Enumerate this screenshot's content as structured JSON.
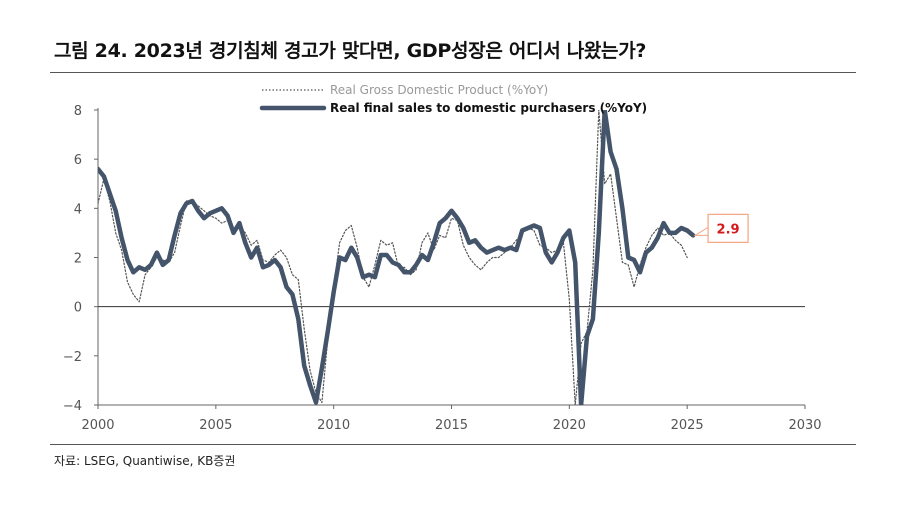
{
  "header": {
    "title": "그림 24. 2023년 경기침체 경고가 맞다면, GDP성장은 어디서 나왔는가?",
    "source": "자료: LSEG, Quantiwise, KB증권"
  },
  "colors": {
    "gdp_line": "#555555",
    "sales_line": "#44546a",
    "callout_border": "#f4a582",
    "callout_text": "#d7191c",
    "zero_line": "#333333"
  },
  "chart_data": {
    "type": "line",
    "title": "",
    "xlabel": "",
    "ylabel": "",
    "xlim": [
      2000,
      2030
    ],
    "ylim": [
      -4,
      8
    ],
    "x_ticks": [
      "2000",
      "2005",
      "2010",
      "2015",
      "2020",
      "2025",
      "2030"
    ],
    "y_ticks": [
      "8",
      "6",
      "4",
      "2",
      "0",
      "−2",
      "−4"
    ],
    "legend_position": "top-center",
    "grid": false,
    "series": [
      {
        "name": "Real Gross Domestic Product (%YoY)",
        "style": "dotted",
        "points": [
          [
            2000.0,
            4.2
          ],
          [
            2000.25,
            5.2
          ],
          [
            2000.5,
            4.3
          ],
          [
            2000.75,
            3.0
          ],
          [
            2001.0,
            2.3
          ],
          [
            2001.25,
            1.0
          ],
          [
            2001.5,
            0.5
          ],
          [
            2001.75,
            0.2
          ],
          [
            2002.0,
            1.3
          ],
          [
            2002.25,
            1.6
          ],
          [
            2002.5,
            2.0
          ],
          [
            2002.75,
            1.9
          ],
          [
            2003.0,
            1.8
          ],
          [
            2003.25,
            2.2
          ],
          [
            2003.5,
            3.3
          ],
          [
            2003.75,
            4.3
          ],
          [
            2004.0,
            4.3
          ],
          [
            2004.25,
            4.1
          ],
          [
            2004.5,
            3.9
          ],
          [
            2004.75,
            3.7
          ],
          [
            2005.0,
            3.6
          ],
          [
            2005.25,
            3.4
          ],
          [
            2005.5,
            3.5
          ],
          [
            2005.75,
            3.1
          ],
          [
            2006.0,
            3.3
          ],
          [
            2006.25,
            3.0
          ],
          [
            2006.5,
            2.5
          ],
          [
            2006.75,
            2.7
          ],
          [
            2007.0,
            1.9
          ],
          [
            2007.25,
            1.8
          ],
          [
            2007.5,
            2.1
          ],
          [
            2007.75,
            2.3
          ],
          [
            2008.0,
            2.0
          ],
          [
            2008.25,
            1.3
          ],
          [
            2008.5,
            1.1
          ],
          [
            2008.75,
            -0.9
          ],
          [
            2009.0,
            -2.6
          ],
          [
            2009.25,
            -3.5
          ],
          [
            2009.5,
            -3.9
          ],
          [
            2009.75,
            -1.3
          ],
          [
            2010.0,
            0.8
          ],
          [
            2010.25,
            2.6
          ],
          [
            2010.5,
            3.1
          ],
          [
            2010.75,
            3.3
          ],
          [
            2011.0,
            2.4
          ],
          [
            2011.25,
            1.2
          ],
          [
            2011.5,
            0.8
          ],
          [
            2011.75,
            1.7
          ],
          [
            2012.0,
            2.7
          ],
          [
            2012.25,
            2.5
          ],
          [
            2012.5,
            2.6
          ],
          [
            2012.75,
            1.6
          ],
          [
            2013.0,
            1.6
          ],
          [
            2013.25,
            1.3
          ],
          [
            2013.5,
            1.5
          ],
          [
            2013.75,
            2.6
          ],
          [
            2014.0,
            3.0
          ],
          [
            2014.25,
            2.3
          ],
          [
            2014.5,
            2.9
          ],
          [
            2014.75,
            2.8
          ],
          [
            2015.0,
            3.6
          ],
          [
            2015.25,
            3.5
          ],
          [
            2015.5,
            2.5
          ],
          [
            2015.75,
            2.0
          ],
          [
            2016.0,
            1.7
          ],
          [
            2016.25,
            1.5
          ],
          [
            2016.5,
            1.8
          ],
          [
            2016.75,
            2.0
          ],
          [
            2017.0,
            2.0
          ],
          [
            2017.25,
            2.2
          ],
          [
            2017.5,
            2.4
          ],
          [
            2017.75,
            2.7
          ],
          [
            2018.0,
            3.0
          ],
          [
            2018.25,
            3.2
          ],
          [
            2018.5,
            3.1
          ],
          [
            2018.75,
            2.5
          ],
          [
            2019.0,
            2.4
          ],
          [
            2019.25,
            2.2
          ],
          [
            2019.5,
            2.3
          ],
          [
            2019.75,
            2.6
          ],
          [
            2020.0,
            0.3
          ],
          [
            2020.25,
            -8.0
          ],
          [
            2020.5,
            -1.5
          ],
          [
            2020.75,
            -1.0
          ],
          [
            2021.0,
            1.5
          ],
          [
            2021.25,
            8.0
          ],
          [
            2021.5,
            5.0
          ],
          [
            2021.75,
            5.4
          ],
          [
            2022.0,
            3.6
          ],
          [
            2022.25,
            1.8
          ],
          [
            2022.5,
            1.7
          ],
          [
            2022.75,
            0.8
          ],
          [
            2023.0,
            1.7
          ],
          [
            2023.25,
            2.4
          ],
          [
            2023.5,
            2.9
          ],
          [
            2023.75,
            3.2
          ],
          [
            2024.0,
            2.9
          ],
          [
            2024.25,
            3.0
          ],
          [
            2024.5,
            2.7
          ],
          [
            2024.75,
            2.5
          ],
          [
            2025.0,
            2.0
          ]
        ]
      },
      {
        "name": "Real final sales to domestic purchasers (%YoY)",
        "style": "solid",
        "points": [
          [
            2000.0,
            5.6
          ],
          [
            2000.25,
            5.3
          ],
          [
            2000.5,
            4.6
          ],
          [
            2000.75,
            3.9
          ],
          [
            2001.0,
            2.8
          ],
          [
            2001.25,
            1.9
          ],
          [
            2001.5,
            1.4
          ],
          [
            2001.75,
            1.6
          ],
          [
            2002.0,
            1.5
          ],
          [
            2002.25,
            1.7
          ],
          [
            2002.5,
            2.2
          ],
          [
            2002.75,
            1.7
          ],
          [
            2003.0,
            1.9
          ],
          [
            2003.25,
            2.9
          ],
          [
            2003.5,
            3.8
          ],
          [
            2003.75,
            4.2
          ],
          [
            2004.0,
            4.3
          ],
          [
            2004.25,
            3.9
          ],
          [
            2004.5,
            3.6
          ],
          [
            2004.75,
            3.8
          ],
          [
            2005.0,
            3.9
          ],
          [
            2005.25,
            4.0
          ],
          [
            2005.5,
            3.7
          ],
          [
            2005.75,
            3.0
          ],
          [
            2006.0,
            3.4
          ],
          [
            2006.25,
            2.6
          ],
          [
            2006.5,
            2.0
          ],
          [
            2006.75,
            2.4
          ],
          [
            2007.0,
            1.6
          ],
          [
            2007.25,
            1.7
          ],
          [
            2007.5,
            1.9
          ],
          [
            2007.75,
            1.6
          ],
          [
            2008.0,
            0.8
          ],
          [
            2008.25,
            0.5
          ],
          [
            2008.5,
            -0.5
          ],
          [
            2008.75,
            -2.4
          ],
          [
            2009.0,
            -3.2
          ],
          [
            2009.25,
            -3.9
          ],
          [
            2009.5,
            -2.5
          ],
          [
            2009.75,
            -1.0
          ],
          [
            2010.0,
            0.6
          ],
          [
            2010.25,
            2.0
          ],
          [
            2010.5,
            1.9
          ],
          [
            2010.75,
            2.4
          ],
          [
            2011.0,
            2.0
          ],
          [
            2011.25,
            1.2
          ],
          [
            2011.5,
            1.3
          ],
          [
            2011.75,
            1.2
          ],
          [
            2012.0,
            2.1
          ],
          [
            2012.25,
            2.1
          ],
          [
            2012.5,
            1.8
          ],
          [
            2012.75,
            1.7
          ],
          [
            2013.0,
            1.4
          ],
          [
            2013.25,
            1.4
          ],
          [
            2013.5,
            1.7
          ],
          [
            2013.75,
            2.1
          ],
          [
            2014.0,
            1.9
          ],
          [
            2014.25,
            2.6
          ],
          [
            2014.5,
            3.4
          ],
          [
            2014.75,
            3.6
          ],
          [
            2015.0,
            3.9
          ],
          [
            2015.25,
            3.6
          ],
          [
            2015.5,
            3.2
          ],
          [
            2015.75,
            2.6
          ],
          [
            2016.0,
            2.7
          ],
          [
            2016.25,
            2.4
          ],
          [
            2016.5,
            2.2
          ],
          [
            2016.75,
            2.3
          ],
          [
            2017.0,
            2.4
          ],
          [
            2017.25,
            2.3
          ],
          [
            2017.5,
            2.4
          ],
          [
            2017.75,
            2.3
          ],
          [
            2018.0,
            3.1
          ],
          [
            2018.25,
            3.2
          ],
          [
            2018.5,
            3.3
          ],
          [
            2018.75,
            3.2
          ],
          [
            2019.0,
            2.2
          ],
          [
            2019.25,
            1.8
          ],
          [
            2019.5,
            2.2
          ],
          [
            2019.75,
            2.8
          ],
          [
            2020.0,
            3.1
          ],
          [
            2020.25,
            1.8
          ],
          [
            2020.5,
            -4.0
          ],
          [
            2020.75,
            -1.2
          ],
          [
            2021.0,
            -0.5
          ],
          [
            2021.25,
            3.0
          ],
          [
            2021.5,
            8.0
          ],
          [
            2021.75,
            6.3
          ],
          [
            2022.0,
            5.6
          ],
          [
            2022.25,
            4.0
          ],
          [
            2022.5,
            2.0
          ],
          [
            2022.75,
            1.9
          ],
          [
            2023.0,
            1.4
          ],
          [
            2023.25,
            2.2
          ],
          [
            2023.5,
            2.4
          ],
          [
            2023.75,
            2.8
          ],
          [
            2024.0,
            3.4
          ],
          [
            2024.25,
            3.0
          ],
          [
            2024.5,
            3.0
          ],
          [
            2024.75,
            3.2
          ],
          [
            2025.0,
            3.1
          ],
          [
            2025.25,
            2.9
          ]
        ]
      }
    ],
    "annotations": [
      {
        "text": "2.9",
        "x": 2025.25,
        "y": 2.9
      }
    ]
  }
}
